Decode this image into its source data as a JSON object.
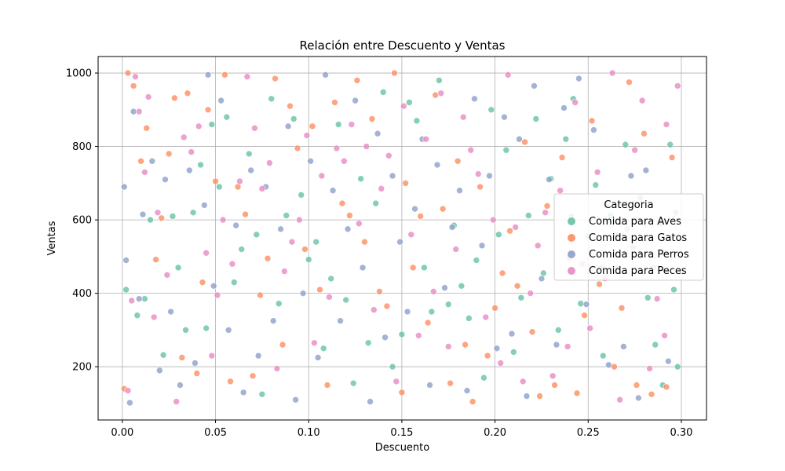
{
  "chart_data": {
    "type": "scatter",
    "title": "Relación entre Descuento y Ventas",
    "xlabel": "Descuento",
    "ylabel": "Ventas",
    "xlim": [
      -0.013,
      0.3135
    ],
    "ylim": [
      55,
      1045
    ],
    "x_ticks": [
      0.0,
      0.05,
      0.1,
      0.15,
      0.2,
      0.25,
      0.3
    ],
    "x_tick_labels": [
      "0.00",
      "0.05",
      "0.10",
      "0.15",
      "0.20",
      "0.25",
      "0.30"
    ],
    "y_ticks": [
      200,
      400,
      600,
      800,
      1000
    ],
    "y_tick_labels": [
      "200",
      "400",
      "600",
      "800",
      "1000"
    ],
    "grid": true,
    "legend": {
      "title": "Categoria",
      "placement": "center-right"
    },
    "series": [
      {
        "name": "Comida para Aves",
        "color": "#66c2a5",
        "points": [
          [
            0.002,
            410
          ],
          [
            0.008,
            340
          ],
          [
            0.012,
            385
          ],
          [
            0.015,
            600
          ],
          [
            0.022,
            232
          ],
          [
            0.027,
            610
          ],
          [
            0.03,
            470
          ],
          [
            0.034,
            300
          ],
          [
            0.038,
            620
          ],
          [
            0.042,
            750
          ],
          [
            0.045,
            305
          ],
          [
            0.048,
            860
          ],
          [
            0.052,
            690
          ],
          [
            0.056,
            880
          ],
          [
            0.06,
            430
          ],
          [
            0.064,
            520
          ],
          [
            0.068,
            780
          ],
          [
            0.072,
            560
          ],
          [
            0.075,
            125
          ],
          [
            0.08,
            930
          ],
          [
            0.084,
            372
          ],
          [
            0.088,
            612
          ],
          [
            0.092,
            875
          ],
          [
            0.096,
            668
          ],
          [
            0.1,
            492
          ],
          [
            0.104,
            540
          ],
          [
            0.108,
            250
          ],
          [
            0.112,
            440
          ],
          [
            0.116,
            860
          ],
          [
            0.12,
            382
          ],
          [
            0.124,
            155
          ],
          [
            0.128,
            712
          ],
          [
            0.132,
            265
          ],
          [
            0.136,
            645
          ],
          [
            0.14,
            948
          ],
          [
            0.145,
            200
          ],
          [
            0.15,
            288
          ],
          [
            0.154,
            920
          ],
          [
            0.158,
            870
          ],
          [
            0.162,
            470
          ],
          [
            0.166,
            350
          ],
          [
            0.17,
            980
          ],
          [
            0.175,
            370
          ],
          [
            0.178,
            585
          ],
          [
            0.182,
            420
          ],
          [
            0.186,
            332
          ],
          [
            0.19,
            490
          ],
          [
            0.194,
            170
          ],
          [
            0.198,
            900
          ],
          [
            0.202,
            560
          ],
          [
            0.206,
            790
          ],
          [
            0.21,
            240
          ],
          [
            0.214,
            388
          ],
          [
            0.218,
            612
          ],
          [
            0.222,
            875
          ],
          [
            0.226,
            455
          ],
          [
            0.23,
            712
          ],
          [
            0.234,
            300
          ],
          [
            0.238,
            820
          ],
          [
            0.242,
            930
          ],
          [
            0.246,
            372
          ],
          [
            0.25,
            555
          ],
          [
            0.254,
            695
          ],
          [
            0.258,
            230
          ],
          [
            0.262,
            612
          ],
          [
            0.266,
            470
          ],
          [
            0.27,
            805
          ],
          [
            0.274,
            525
          ],
          [
            0.278,
            660
          ],
          [
            0.282,
            388
          ],
          [
            0.286,
            260
          ],
          [
            0.29,
            150
          ],
          [
            0.294,
            805
          ],
          [
            0.296,
            410
          ],
          [
            0.298,
            200
          ]
        ]
      },
      {
        "name": "Comida para Gatos",
        "color": "#fc8d62",
        "points": [
          [
            0.001,
            140
          ],
          [
            0.003,
            1000
          ],
          [
            0.006,
            965
          ],
          [
            0.01,
            760
          ],
          [
            0.013,
            850
          ],
          [
            0.018,
            492
          ],
          [
            0.021,
            605
          ],
          [
            0.025,
            780
          ],
          [
            0.028,
            932
          ],
          [
            0.032,
            225
          ],
          [
            0.035,
            945
          ],
          [
            0.04,
            182
          ],
          [
            0.043,
            430
          ],
          [
            0.046,
            900
          ],
          [
            0.05,
            705
          ],
          [
            0.055,
            995
          ],
          [
            0.058,
            160
          ],
          [
            0.062,
            690
          ],
          [
            0.066,
            615
          ],
          [
            0.07,
            175
          ],
          [
            0.074,
            395
          ],
          [
            0.078,
            495
          ],
          [
            0.082,
            985
          ],
          [
            0.086,
            260
          ],
          [
            0.09,
            910
          ],
          [
            0.094,
            795
          ],
          [
            0.098,
            520
          ],
          [
            0.102,
            855
          ],
          [
            0.106,
            410
          ],
          [
            0.11,
            150
          ],
          [
            0.114,
            920
          ],
          [
            0.118,
            645
          ],
          [
            0.122,
            612
          ],
          [
            0.126,
            980
          ],
          [
            0.13,
            540
          ],
          [
            0.134,
            875
          ],
          [
            0.138,
            405
          ],
          [
            0.142,
            365
          ],
          [
            0.146,
            1000
          ],
          [
            0.15,
            130
          ],
          [
            0.152,
            700
          ],
          [
            0.156,
            470
          ],
          [
            0.16,
            610
          ],
          [
            0.164,
            320
          ],
          [
            0.168,
            940
          ],
          [
            0.172,
            630
          ],
          [
            0.176,
            155
          ],
          [
            0.18,
            760
          ],
          [
            0.184,
            260
          ],
          [
            0.188,
            105
          ],
          [
            0.192,
            690
          ],
          [
            0.196,
            230
          ],
          [
            0.2,
            360
          ],
          [
            0.204,
            455
          ],
          [
            0.208,
            570
          ],
          [
            0.212,
            420
          ],
          [
            0.216,
            812
          ],
          [
            0.22,
            295
          ],
          [
            0.224,
            120
          ],
          [
            0.228,
            638
          ],
          [
            0.232,
            150
          ],
          [
            0.236,
            770
          ],
          [
            0.24,
            495
          ],
          [
            0.244,
            128
          ],
          [
            0.248,
            340
          ],
          [
            0.252,
            870
          ],
          [
            0.256,
            425
          ],
          [
            0.26,
            640
          ],
          [
            0.264,
            200
          ],
          [
            0.268,
            360
          ],
          [
            0.272,
            975
          ],
          [
            0.276,
            150
          ],
          [
            0.28,
            835
          ],
          [
            0.284,
            125
          ],
          [
            0.288,
            590
          ],
          [
            0.292,
            145
          ],
          [
            0.295,
            770
          ]
        ]
      },
      {
        "name": "Comida para Perros",
        "color": "#8da0cb",
        "points": [
          [
            0.001,
            690
          ],
          [
            0.002,
            490
          ],
          [
            0.004,
            102
          ],
          [
            0.006,
            895
          ],
          [
            0.009,
            385
          ],
          [
            0.011,
            615
          ],
          [
            0.016,
            760
          ],
          [
            0.02,
            190
          ],
          [
            0.023,
            710
          ],
          [
            0.026,
            350
          ],
          [
            0.031,
            150
          ],
          [
            0.036,
            735
          ],
          [
            0.039,
            210
          ],
          [
            0.044,
            640
          ],
          [
            0.046,
            995
          ],
          [
            0.049,
            420
          ],
          [
            0.053,
            925
          ],
          [
            0.057,
            300
          ],
          [
            0.061,
            585
          ],
          [
            0.065,
            130
          ],
          [
            0.069,
            735
          ],
          [
            0.073,
            230
          ],
          [
            0.077,
            690
          ],
          [
            0.081,
            325
          ],
          [
            0.085,
            575
          ],
          [
            0.089,
            855
          ],
          [
            0.093,
            110
          ],
          [
            0.097,
            400
          ],
          [
            0.101,
            760
          ],
          [
            0.105,
            225
          ],
          [
            0.109,
            995
          ],
          [
            0.113,
            680
          ],
          [
            0.117,
            325
          ],
          [
            0.121,
            575
          ],
          [
            0.125,
            925
          ],
          [
            0.129,
            470
          ],
          [
            0.133,
            105
          ],
          [
            0.137,
            835
          ],
          [
            0.141,
            280
          ],
          [
            0.145,
            720
          ],
          [
            0.149,
            540
          ],
          [
            0.153,
            350
          ],
          [
            0.157,
            630
          ],
          [
            0.161,
            820
          ],
          [
            0.165,
            150
          ],
          [
            0.169,
            750
          ],
          [
            0.173,
            415
          ],
          [
            0.177,
            580
          ],
          [
            0.181,
            680
          ],
          [
            0.185,
            135
          ],
          [
            0.189,
            930
          ],
          [
            0.193,
            530
          ],
          [
            0.197,
            720
          ],
          [
            0.201,
            250
          ],
          [
            0.205,
            880
          ],
          [
            0.209,
            290
          ],
          [
            0.213,
            820
          ],
          [
            0.217,
            120
          ],
          [
            0.221,
            965
          ],
          [
            0.225,
            440
          ],
          [
            0.229,
            710
          ],
          [
            0.233,
            260
          ],
          [
            0.237,
            905
          ],
          [
            0.241,
            610
          ],
          [
            0.245,
            985
          ],
          [
            0.249,
            370
          ],
          [
            0.253,
            845
          ],
          [
            0.257,
            470
          ],
          [
            0.261,
            205
          ],
          [
            0.265,
            560
          ],
          [
            0.269,
            255
          ],
          [
            0.273,
            720
          ],
          [
            0.277,
            115
          ],
          [
            0.281,
            735
          ],
          [
            0.285,
            470
          ],
          [
            0.289,
            590
          ],
          [
            0.293,
            215
          ],
          [
            0.297,
            620
          ]
        ]
      },
      {
        "name": "Comida para Peces",
        "color": "#e78ac3",
        "points": [
          [
            0.003,
            135
          ],
          [
            0.005,
            380
          ],
          [
            0.007,
            990
          ],
          [
            0.009,
            895
          ],
          [
            0.012,
            730
          ],
          [
            0.014,
            935
          ],
          [
            0.017,
            335
          ],
          [
            0.019,
            620
          ],
          [
            0.024,
            450
          ],
          [
            0.029,
            105
          ],
          [
            0.033,
            825
          ],
          [
            0.037,
            785
          ],
          [
            0.041,
            855
          ],
          [
            0.045,
            510
          ],
          [
            0.048,
            230
          ],
          [
            0.051,
            395
          ],
          [
            0.054,
            600
          ],
          [
            0.059,
            480
          ],
          [
            0.063,
            705
          ],
          [
            0.067,
            990
          ],
          [
            0.071,
            850
          ],
          [
            0.075,
            685
          ],
          [
            0.079,
            755
          ],
          [
            0.083,
            195
          ],
          [
            0.087,
            460
          ],
          [
            0.091,
            540
          ],
          [
            0.095,
            600
          ],
          [
            0.099,
            830
          ],
          [
            0.103,
            265
          ],
          [
            0.107,
            720
          ],
          [
            0.111,
            390
          ],
          [
            0.115,
            795
          ],
          [
            0.119,
            760
          ],
          [
            0.123,
            860
          ],
          [
            0.127,
            590
          ],
          [
            0.131,
            800
          ],
          [
            0.135,
            355
          ],
          [
            0.139,
            685
          ],
          [
            0.143,
            775
          ],
          [
            0.147,
            160
          ],
          [
            0.151,
            910
          ],
          [
            0.155,
            560
          ],
          [
            0.159,
            285
          ],
          [
            0.163,
            820
          ],
          [
            0.167,
            405
          ],
          [
            0.171,
            945
          ],
          [
            0.175,
            255
          ],
          [
            0.179,
            520
          ],
          [
            0.183,
            880
          ],
          [
            0.187,
            790
          ],
          [
            0.191,
            725
          ],
          [
            0.195,
            335
          ],
          [
            0.199,
            600
          ],
          [
            0.203,
            210
          ],
          [
            0.207,
            995
          ],
          [
            0.211,
            580
          ],
          [
            0.215,
            160
          ],
          [
            0.219,
            400
          ],
          [
            0.223,
            530
          ],
          [
            0.227,
            620
          ],
          [
            0.231,
            175
          ],
          [
            0.235,
            680
          ],
          [
            0.239,
            255
          ],
          [
            0.243,
            920
          ],
          [
            0.247,
            480
          ],
          [
            0.251,
            305
          ],
          [
            0.255,
            730
          ],
          [
            0.259,
            440
          ],
          [
            0.263,
            1000
          ],
          [
            0.267,
            110
          ],
          [
            0.271,
            575
          ],
          [
            0.275,
            790
          ],
          [
            0.279,
            925
          ],
          [
            0.283,
            195
          ],
          [
            0.287,
            385
          ],
          [
            0.291,
            285
          ],
          [
            0.292,
            860
          ],
          [
            0.298,
            965
          ]
        ]
      }
    ]
  }
}
